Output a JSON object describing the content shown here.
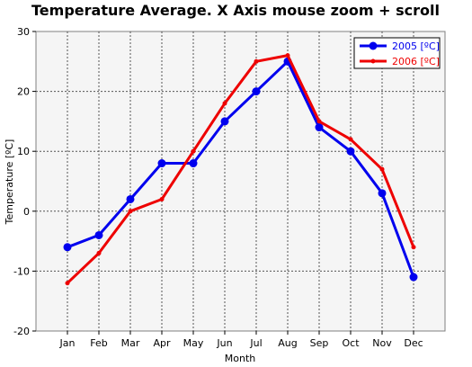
{
  "chart_data": {
    "type": "line",
    "title": "Temperature Average. X Axis mouse zoom + scroll",
    "xlabel": "Month",
    "ylabel": "Temperature [ºC]",
    "categories": [
      "Jan",
      "Feb",
      "Mar",
      "Apr",
      "May",
      "Jun",
      "Jul",
      "Aug",
      "Sep",
      "Oct",
      "Nov",
      "Dec"
    ],
    "ylim": [
      -20,
      30
    ],
    "yticks": [
      -20,
      -10,
      0,
      10,
      20,
      30
    ],
    "grid": true,
    "legend_position": "top-right",
    "series": [
      {
        "name": "2005 [ºC]",
        "color": "#0000ee",
        "values": [
          -6,
          -4,
          2,
          8,
          8,
          15,
          20,
          25,
          14,
          10,
          3,
          -11
        ]
      },
      {
        "name": "2006 [ºC]",
        "color": "#ee0000",
        "values": [
          -12,
          -7,
          0,
          2,
          10,
          18,
          25,
          26,
          15,
          12,
          7,
          -6
        ]
      }
    ]
  }
}
